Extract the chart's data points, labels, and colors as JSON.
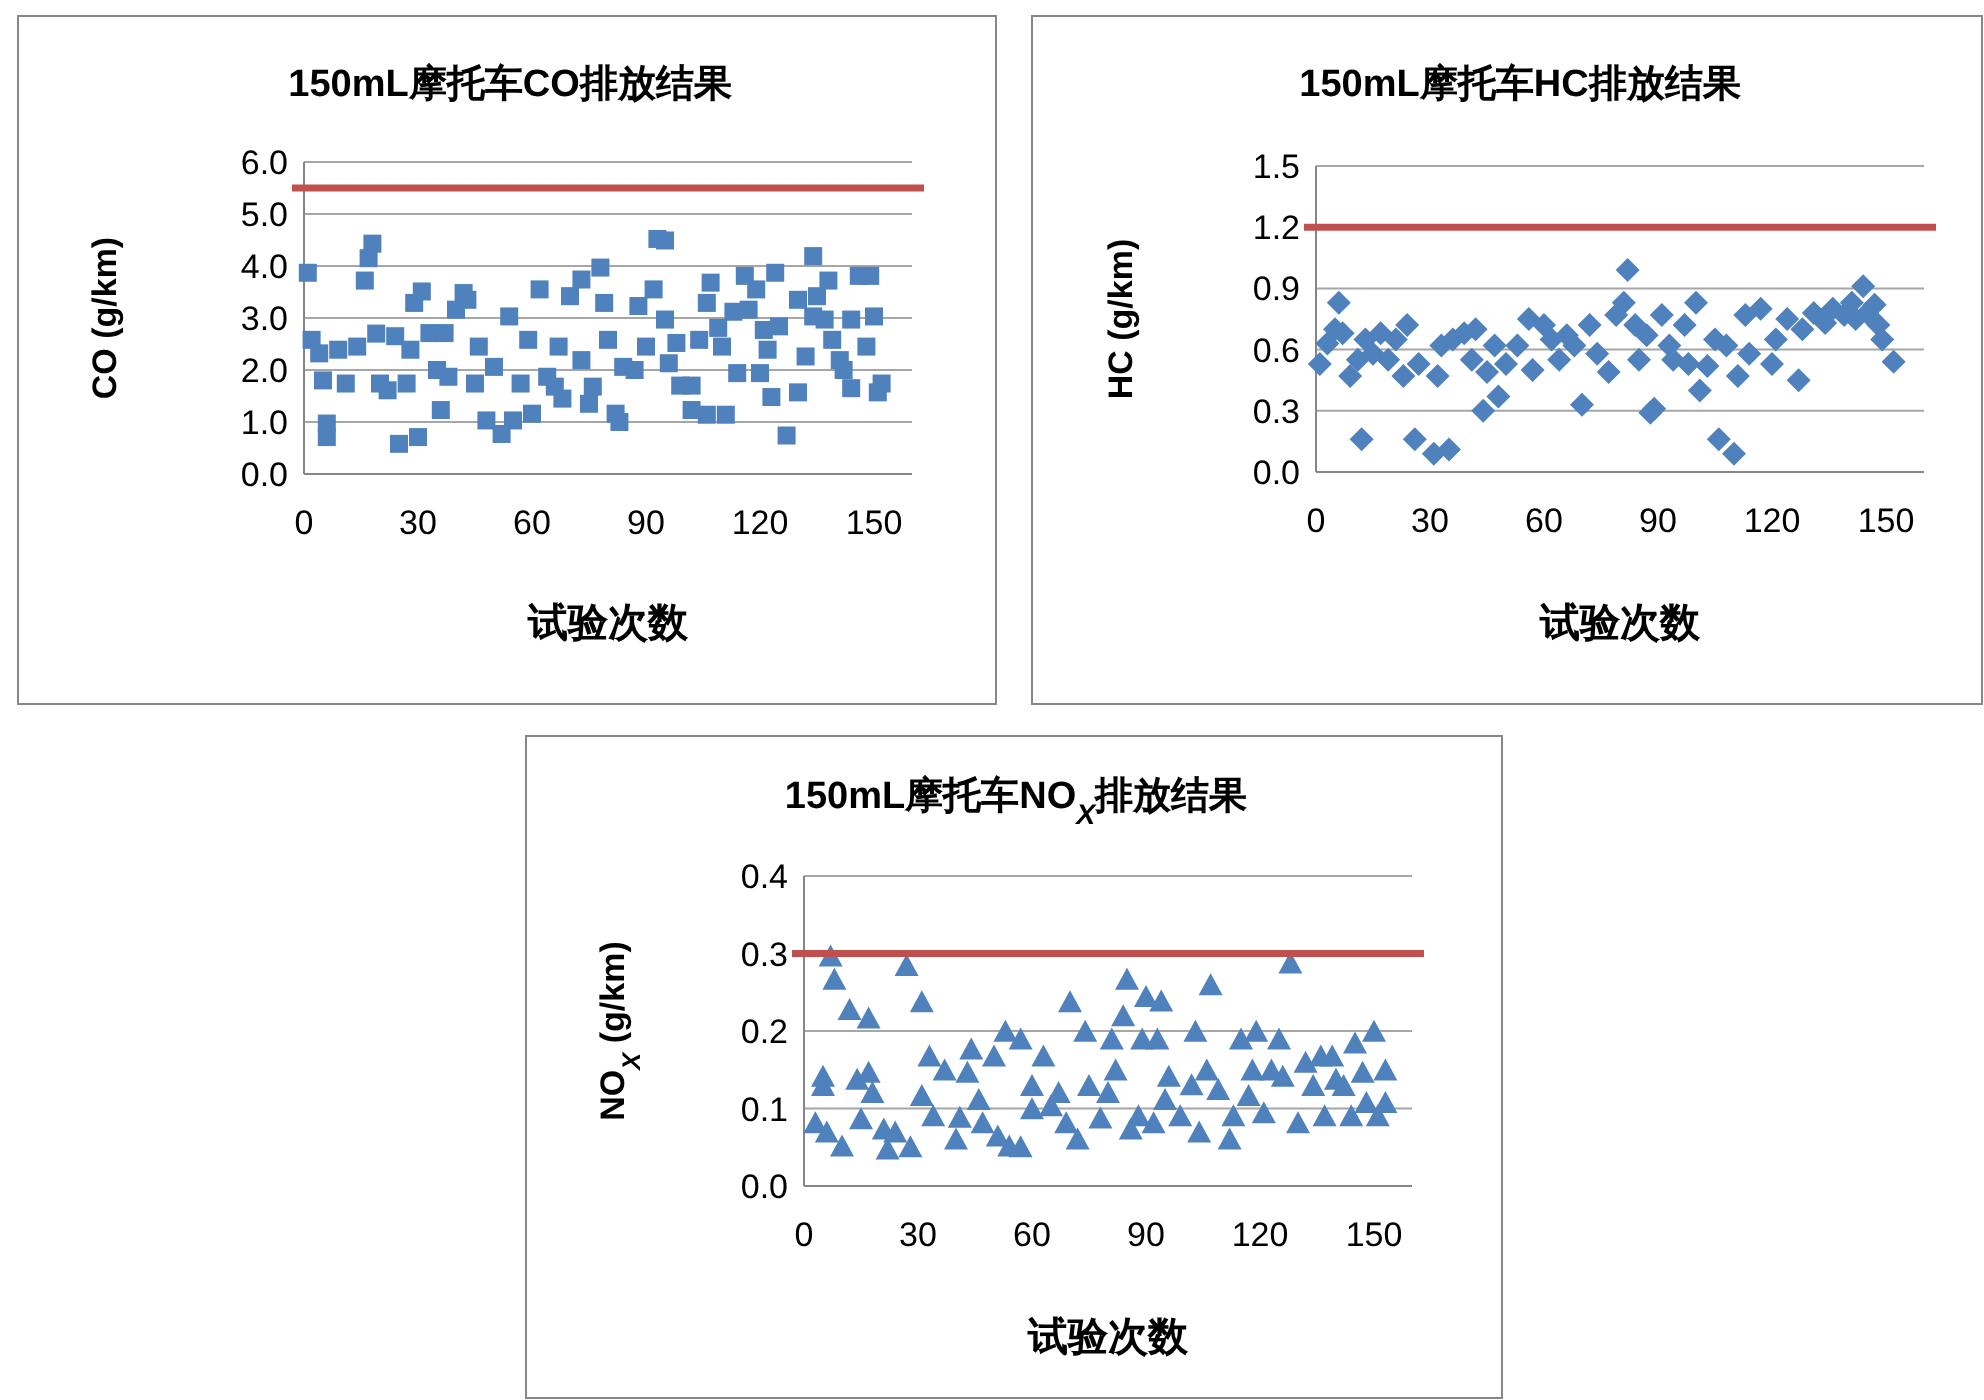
{
  "chart_data": [
    {
      "type": "scatter",
      "title": "150mL摩托车CO排放结果",
      "xlabel": "试验次数",
      "ylabel": "CO (g/km)",
      "xlim": [
        0,
        160
      ],
      "xticks": [
        0,
        30,
        60,
        90,
        120,
        150
      ],
      "ylim": [
        0,
        6
      ],
      "yticks": [
        {
          "value": 0,
          "label": "0.0"
        },
        {
          "value": 1,
          "label": "1.0"
        },
        {
          "value": 2,
          "label": "2.0"
        },
        {
          "value": 3,
          "label": "3.0"
        },
        {
          "value": 4,
          "label": "4.0"
        },
        {
          "value": 5,
          "label": "5.0"
        },
        {
          "value": 6,
          "label": "6.0"
        }
      ],
      "grid": "y",
      "marker": "square",
      "ref_lines": [
        {
          "axis": "y",
          "value": 5.5,
          "color": "#c0504d"
        }
      ],
      "series": [
        {
          "color": "#4f81bd",
          "x": [
            1,
            2,
            4,
            5,
            6,
            6,
            9,
            11,
            14,
            16,
            17,
            18,
            19,
            20,
            22,
            24,
            25,
            27,
            28,
            29,
            30,
            31,
            33,
            35,
            36,
            37,
            38,
            40,
            42,
            43,
            45,
            46,
            48,
            50,
            52,
            54,
            55,
            57,
            59,
            60,
            62,
            64,
            66,
            67,
            68,
            70,
            73,
            73,
            75,
            76,
            78,
            79,
            80,
            82,
            83,
            84,
            87,
            88,
            90,
            92,
            93,
            95,
            95,
            96,
            98,
            99,
            102,
            102,
            104,
            106,
            106,
            107,
            109,
            110,
            111,
            113,
            114,
            116,
            117,
            119,
            120,
            121,
            122,
            123,
            124,
            125,
            127,
            130,
            130,
            132,
            134,
            134,
            135,
            137,
            138,
            139,
            141,
            142,
            144,
            144,
            146,
            148,
            149,
            150,
            151,
            152
          ],
          "values": [
            3.87,
            2.58,
            2.32,
            1.8,
            0.97,
            0.71,
            2.39,
            1.74,
            2.45,
            3.72,
            4.15,
            4.43,
            2.7,
            1.74,
            1.61,
            2.65,
            0.58,
            1.74,
            2.39,
            3.29,
            0.71,
            3.51,
            2.71,
            2.0,
            1.23,
            2.71,
            1.87,
            3.16,
            3.48,
            3.35,
            1.74,
            2.45,
            1.03,
            2.06,
            0.77,
            3.03,
            1.03,
            1.74,
            2.58,
            1.16,
            3.55,
            1.87,
            1.68,
            2.45,
            1.45,
            3.42,
            3.74,
            2.19,
            1.35,
            1.68,
            3.97,
            3.29,
            2.58,
            1.16,
            1.0,
            2.06,
            2.0,
            3.23,
            2.45,
            3.55,
            4.52,
            4.49,
            2.97,
            2.13,
            2.52,
            1.7,
            1.23,
            1.7,
            2.58,
            3.29,
            1.14,
            3.68,
            2.81,
            2.45,
            1.14,
            3.12,
            1.94,
            3.81,
            3.16,
            3.55,
            1.94,
            2.77,
            2.39,
            1.48,
            3.87,
            2.84,
            0.74,
            3.35,
            1.57,
            2.26,
            4.19,
            3.03,
            3.42,
            2.97,
            3.72,
            2.58,
            2.19,
            2.0,
            1.65,
            2.97,
            3.81,
            2.45,
            3.81,
            3.03,
            1.57,
            1.74
          ]
        }
      ]
    },
    {
      "type": "scatter",
      "title": "150mL摩托车HC排放结果",
      "xlabel": "试验次数",
      "ylabel": "HC (g/km)",
      "xlim": [
        0,
        160
      ],
      "xticks": [
        0,
        30,
        60,
        90,
        120,
        150
      ],
      "ylim": [
        0,
        1.5
      ],
      "yticks": [
        {
          "value": 0,
          "label": "0.0"
        },
        0.3,
        0.6,
        0.9,
        1.2,
        1.5
      ],
      "grid": "y",
      "marker": "diamond",
      "ref_lines": [
        {
          "axis": "y",
          "value": 1.2,
          "color": "#c0504d"
        }
      ],
      "series": [
        {
          "color": "#4f81bd",
          "x": [
            1,
            3,
            5,
            6,
            7,
            9,
            12,
            11,
            13,
            15,
            17,
            19,
            21,
            23,
            24,
            26,
            27,
            31,
            32,
            33,
            35,
            36,
            39,
            41,
            42,
            44,
            45,
            47,
            48,
            50,
            53,
            56,
            57,
            60,
            62,
            64,
            66,
            68,
            70,
            72,
            74,
            77,
            79,
            81,
            82,
            84,
            85,
            87,
            88,
            89,
            91,
            93,
            94,
            97,
            98,
            100,
            101,
            103,
            105,
            106,
            108,
            110,
            111,
            113,
            114,
            117,
            120,
            121,
            124,
            127,
            128,
            131,
            134,
            136,
            139,
            141,
            142,
            144,
            145,
            147,
            148,
            149,
            152
          ],
          "values": [
            0.53,
            0.63,
            0.7,
            0.83,
            0.68,
            0.47,
            0.16,
            0.55,
            0.65,
            0.58,
            0.68,
            0.55,
            0.65,
            0.47,
            0.72,
            0.16,
            0.53,
            0.09,
            0.47,
            0.62,
            0.11,
            0.65,
            0.68,
            0.55,
            0.7,
            0.3,
            0.49,
            0.62,
            0.37,
            0.53,
            0.62,
            0.75,
            0.5,
            0.72,
            0.65,
            0.55,
            0.67,
            0.62,
            0.33,
            0.72,
            0.58,
            0.49,
            0.77,
            0.83,
            0.99,
            0.72,
            0.55,
            0.67,
            0.29,
            0.31,
            0.77,
            0.62,
            0.55,
            0.72,
            0.53,
            0.83,
            0.4,
            0.52,
            0.65,
            0.16,
            0.62,
            0.09,
            0.47,
            0.77,
            0.58,
            0.8,
            0.53,
            0.65,
            0.75,
            0.45,
            0.7,
            0.78,
            0.73,
            0.8,
            0.77,
            0.83,
            0.75,
            0.91,
            0.78,
            0.82,
            0.72,
            0.65,
            0.54
          ]
        }
      ]
    },
    {
      "type": "scatter",
      "title": "150mL摩托车NO$_{X}$排放结果",
      "xlabel": "试验次数",
      "ylabel": "NO$_{X}$ (g/km)",
      "xlim": [
        0,
        160
      ],
      "xticks": [
        0,
        30,
        60,
        90,
        120,
        150
      ],
      "ylim": [
        0,
        0.4
      ],
      "yticks": [
        {
          "value": 0,
          "label": "0.0"
        },
        0.1,
        0.2,
        0.3,
        0.4
      ],
      "grid": "y",
      "marker": "triangle",
      "ref_lines": [
        {
          "axis": "y",
          "value": 0.3,
          "color": "#c0504d"
        }
      ],
      "series": [
        {
          "color": "#4f81bd",
          "x": [
            3,
            5,
            5,
            7,
            8,
            6,
            10,
            12,
            14,
            15,
            17,
            17,
            18,
            21,
            22,
            24,
            27,
            28,
            31,
            31,
            33,
            34,
            37,
            40,
            41,
            43,
            44,
            46,
            47,
            50,
            51,
            53,
            54,
            57,
            57,
            60,
            60,
            63,
            65,
            67,
            69,
            70,
            72,
            74,
            75,
            78,
            80,
            81,
            82,
            84,
            85,
            86,
            88,
            89,
            90,
            92,
            93,
            94,
            95,
            96,
            99,
            102,
            103,
            104,
            106,
            107,
            109,
            112,
            113,
            115,
            117,
            118,
            119,
            121,
            123,
            125,
            126,
            128,
            130,
            132,
            134,
            136,
            137,
            139,
            140,
            142,
            144,
            145,
            147,
            148,
            150,
            151,
            153,
            153
          ],
          "values": [
            0.081,
            0.141,
            0.129,
            0.296,
            0.266,
            0.069,
            0.051,
            0.227,
            0.137,
            0.086,
            0.146,
            0.216,
            0.12,
            0.073,
            0.047,
            0.069,
            0.284,
            0.05,
            0.237,
            0.116,
            0.167,
            0.09,
            0.149,
            0.06,
            0.088,
            0.146,
            0.176,
            0.111,
            0.081,
            0.167,
            0.064,
            0.199,
            0.051,
            0.189,
            0.05,
            0.099,
            0.129,
            0.167,
            0.103,
            0.12,
            0.081,
            0.237,
            0.06,
            0.199,
            0.129,
            0.087,
            0.12,
            0.189,
            0.149,
            0.219,
            0.266,
            0.073,
            0.09,
            0.189,
            0.244,
            0.081,
            0.189,
            0.238,
            0.111,
            0.141,
            0.09,
            0.13,
            0.199,
            0.069,
            0.149,
            0.259,
            0.124,
            0.06,
            0.09,
            0.189,
            0.116,
            0.149,
            0.199,
            0.094,
            0.149,
            0.189,
            0.141,
            0.287,
            0.081,
            0.159,
            0.129,
            0.167,
            0.09,
            0.167,
            0.137,
            0.129,
            0.09,
            0.184,
            0.146,
            0.107,
            0.199,
            0.09,
            0.149,
            0.107
          ]
        }
      ]
    }
  ]
}
